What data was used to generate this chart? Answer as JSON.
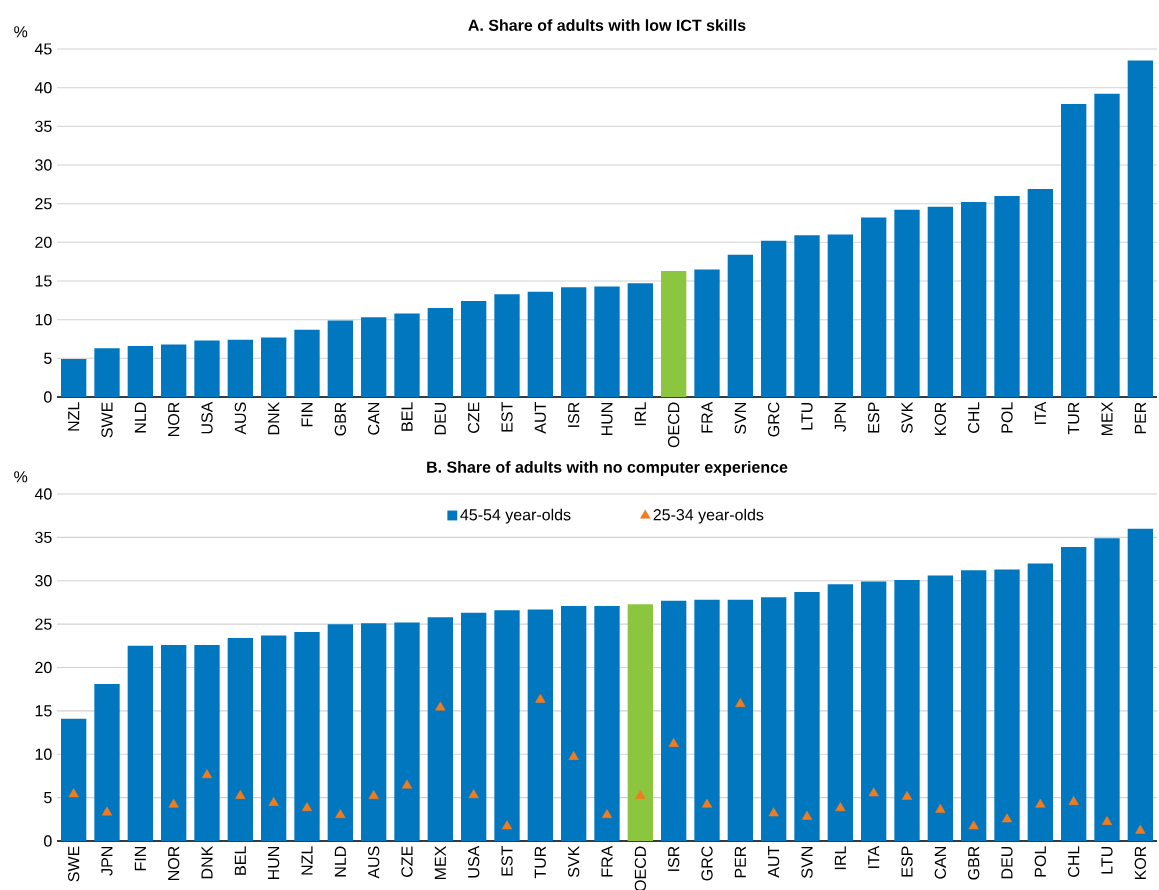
{
  "chart_data": [
    {
      "type": "bar",
      "title": "A. Share of adults with low ICT skills",
      "ylabel": "%",
      "categories": [
        "NZL",
        "SWE",
        "NLD",
        "NOR",
        "USA",
        "AUS",
        "DNK",
        "FIN",
        "GBR",
        "CAN",
        "BEL",
        "DEU",
        "CZE",
        "EST",
        "AUT",
        "ISR",
        "HUN",
        "IRL",
        "OECD",
        "FRA",
        "SVN",
        "GRC",
        "LTU",
        "JPN",
        "ESP",
        "SVK",
        "KOR",
        "CHL",
        "POL",
        "ITA",
        "TUR",
        "MEX",
        "PER"
      ],
      "values": [
        4.9,
        6.3,
        6.6,
        6.8,
        7.3,
        7.4,
        7.7,
        8.7,
        9.9,
        10.3,
        10.8,
        11.5,
        12.4,
        13.3,
        13.6,
        14.2,
        14.3,
        14.7,
        16.3,
        16.5,
        18.4,
        20.2,
        20.9,
        21.0,
        23.2,
        24.2,
        24.6,
        25.2,
        26.0,
        26.9,
        37.9,
        39.2,
        43.5
      ],
      "colors": [
        "#0077bf",
        "#0077bf",
        "#0077bf",
        "#0077bf",
        "#0077bf",
        "#0077bf",
        "#0077bf",
        "#0077bf",
        "#0077bf",
        "#0077bf",
        "#0077bf",
        "#0077bf",
        "#0077bf",
        "#0077bf",
        "#0077bf",
        "#0077bf",
        "#0077bf",
        "#0077bf",
        "#8cc63f",
        "#0077bf",
        "#0077bf",
        "#0077bf",
        "#0077bf",
        "#0077bf",
        "#0077bf",
        "#0077bf",
        "#0077bf",
        "#0077bf",
        "#0077bf",
        "#0077bf",
        "#0077bf",
        "#0077bf",
        "#0077bf"
      ],
      "ylim": [
        0,
        45
      ],
      "yticks": [
        0,
        5,
        10,
        15,
        20,
        25,
        30,
        35,
        40,
        45
      ],
      "grid": "y"
    },
    {
      "type": "bar",
      "title": "B. Share of adults with no computer experience",
      "ylabel": "%",
      "categories": [
        "SWE",
        "JPN",
        "FIN",
        "NOR",
        "DNK",
        "BEL",
        "HUN",
        "NZL",
        "NLD",
        "AUS",
        "CZE",
        "MEX",
        "USA",
        "EST",
        "TUR",
        "SVK",
        "FRA",
        "OECD",
        "ISR",
        "GRC",
        "PER",
        "AUT",
        "SVN",
        "IRL",
        "ITA",
        "ESP",
        "CAN",
        "GBR",
        "DEU",
        "POL",
        "CHL",
        "LTU",
        "KOR"
      ],
      "series": [
        {
          "name": "45-54 year-olds",
          "type": "bar",
          "color": "#0077bf",
          "values": [
            14.1,
            18.1,
            22.5,
            22.6,
            22.6,
            23.4,
            23.7,
            24.1,
            25.0,
            25.1,
            25.2,
            25.8,
            26.3,
            26.6,
            26.7,
            27.1,
            27.1,
            27.3,
            27.7,
            27.8,
            27.8,
            28.1,
            28.7,
            29.6,
            29.9,
            30.1,
            30.6,
            31.2,
            31.3,
            32.0,
            33.9,
            34.9,
            36.0
          ],
          "colors": [
            "#0077bf",
            "#0077bf",
            "#0077bf",
            "#0077bf",
            "#0077bf",
            "#0077bf",
            "#0077bf",
            "#0077bf",
            "#0077bf",
            "#0077bf",
            "#0077bf",
            "#0077bf",
            "#0077bf",
            "#0077bf",
            "#0077bf",
            "#0077bf",
            "#0077bf",
            "#8cc63f",
            "#0077bf",
            "#0077bf",
            "#0077bf",
            "#0077bf",
            "#0077bf",
            "#0077bf",
            "#0077bf",
            "#0077bf",
            "#0077bf",
            "#0077bf",
            "#0077bf",
            "#0077bf",
            "#0077bf",
            "#0077bf",
            "#0077bf"
          ]
        },
        {
          "name": "25-34 year-olds",
          "type": "scatter",
          "color": "#f07c1e",
          "marker": "triangle",
          "values": [
            5.4,
            3.3,
            null,
            4.2,
            7.6,
            5.2,
            4.4,
            3.8,
            3.0,
            5.2,
            6.4,
            15.4,
            5.3,
            1.7,
            16.3,
            9.7,
            3.0,
            5.2,
            11.2,
            4.2,
            15.8,
            3.2,
            2.8,
            3.8,
            5.5,
            5.1,
            3.6,
            1.7,
            2.5,
            4.2,
            4.5,
            2.2,
            1.2
          ]
        }
      ],
      "ylim": [
        0,
        40
      ],
      "yticks": [
        0,
        5,
        10,
        15,
        20,
        25,
        30,
        35,
        40
      ],
      "grid": "y",
      "legend": "top"
    }
  ]
}
